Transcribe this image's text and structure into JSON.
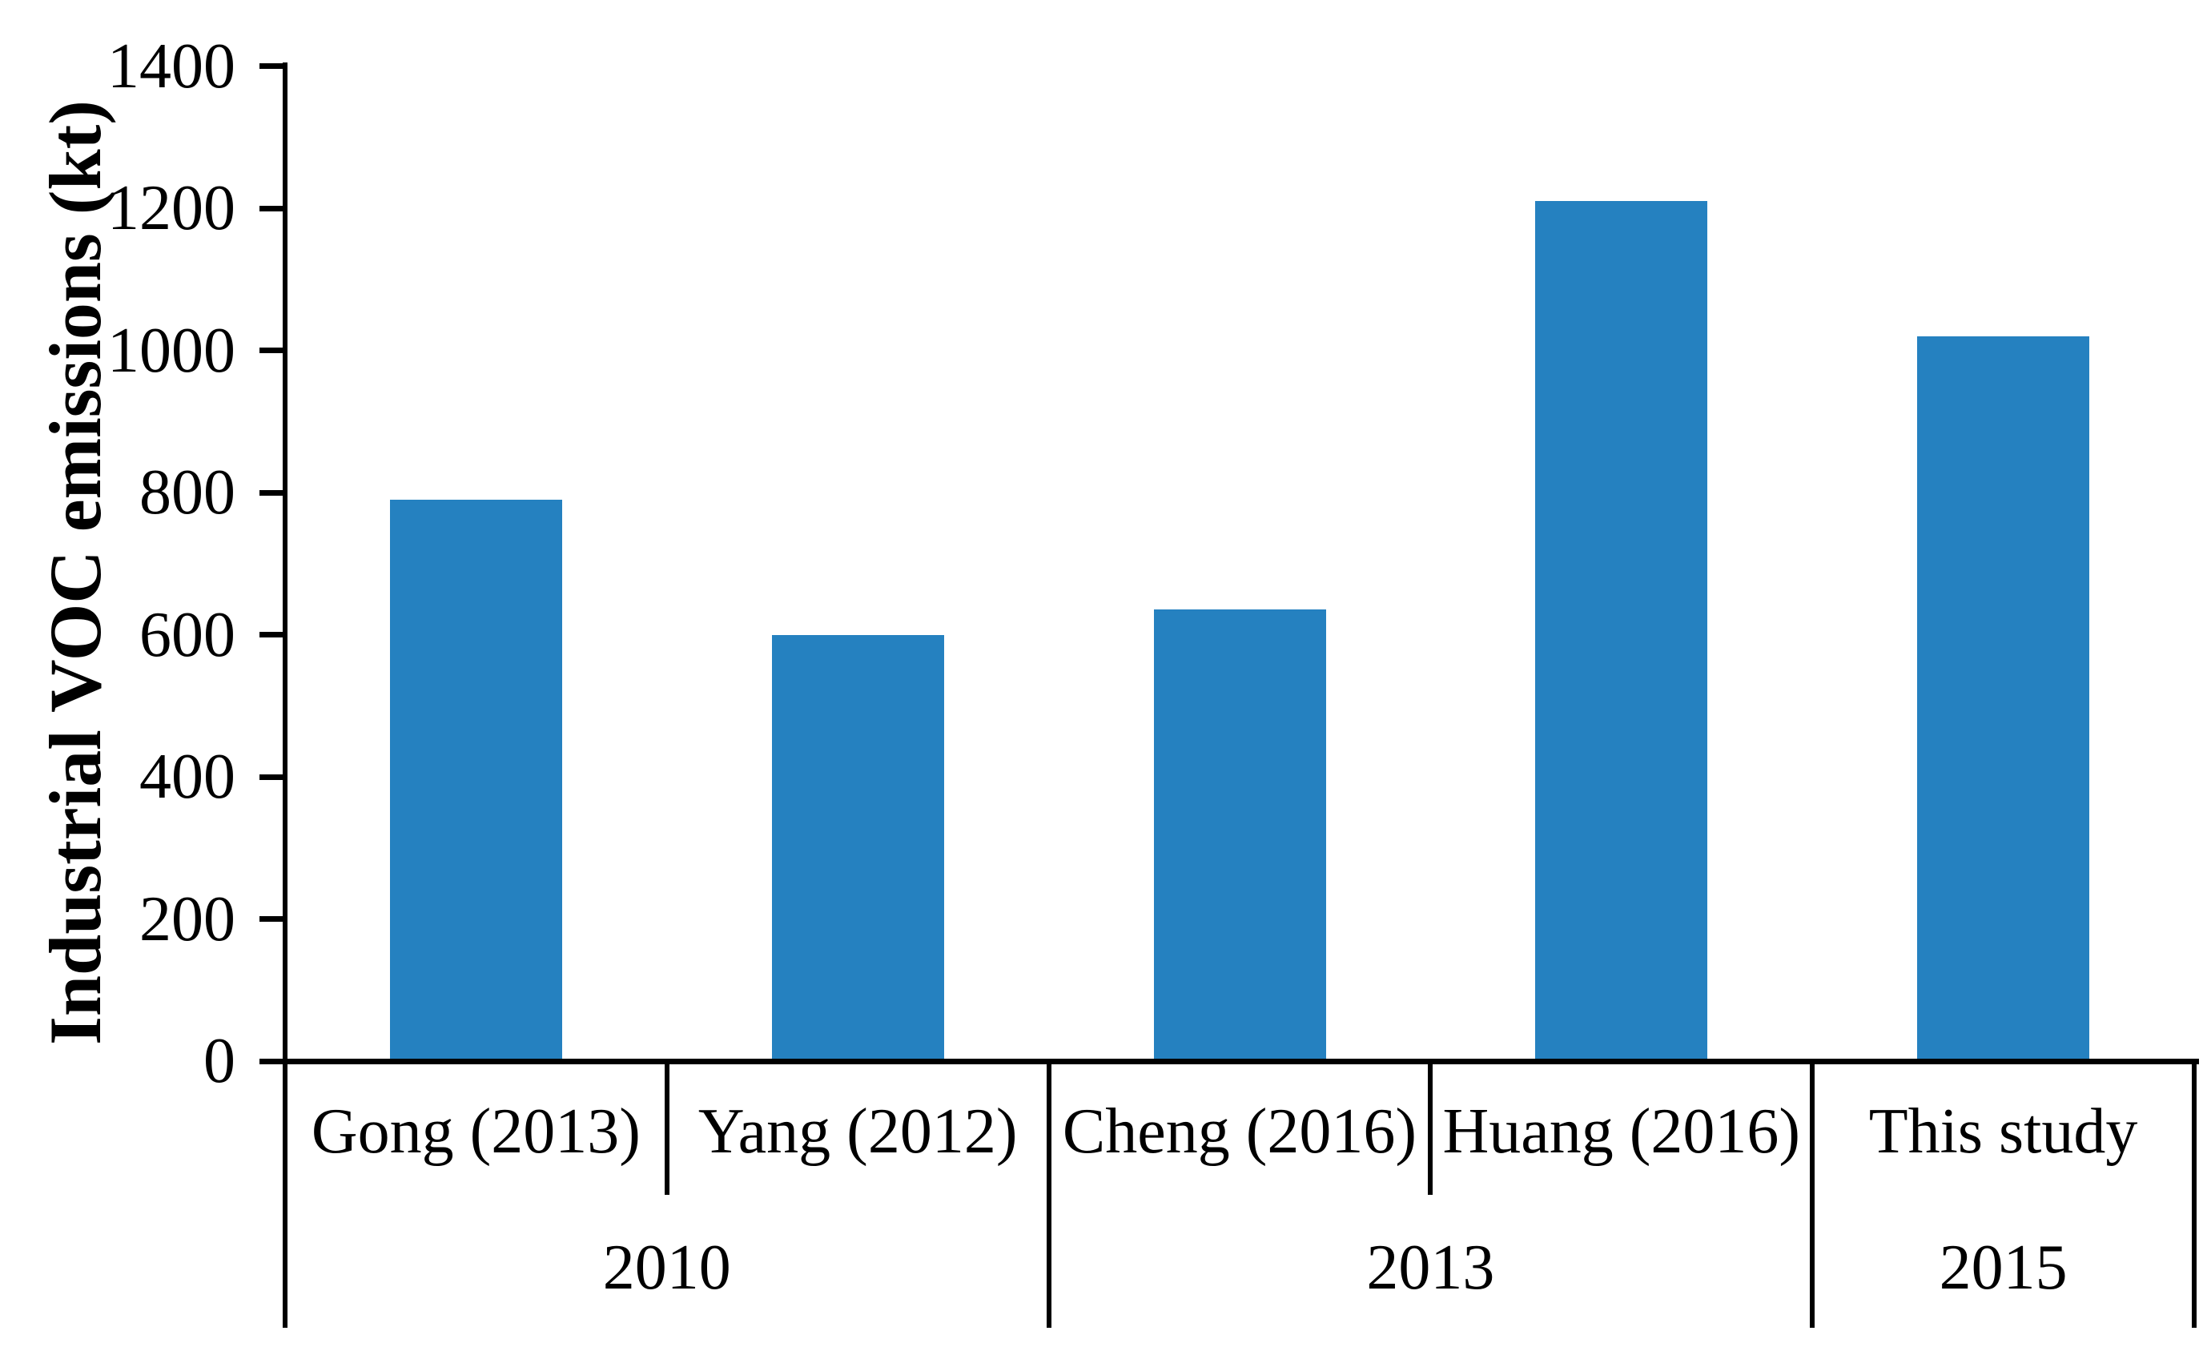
{
  "chart_data": {
    "type": "bar",
    "title": "",
    "ylabel": "Industrial VOC emissions (kt)",
    "xlabel": "",
    "ylim": [
      0,
      1400
    ],
    "ytick_step": 200,
    "ytick_labels": [
      "0",
      "200",
      "400",
      "600",
      "800",
      "1000",
      "1200",
      "1400"
    ],
    "categories": [
      "Gong (2013)",
      "Yang (2012)",
      "Cheng (2016)",
      "Huang (2016)",
      "This study"
    ],
    "values": [
      790,
      600,
      635,
      1210,
      1020
    ],
    "groups": [
      {
        "label": "2010",
        "span": 2
      },
      {
        "label": "2013",
        "span": 2
      },
      {
        "label": "2015",
        "span": 1
      }
    ],
    "series_name": "Industrial VOC emissions",
    "bar_color": "#2581C0",
    "axis_color": "#000000",
    "grid": false,
    "legend": "none"
  }
}
